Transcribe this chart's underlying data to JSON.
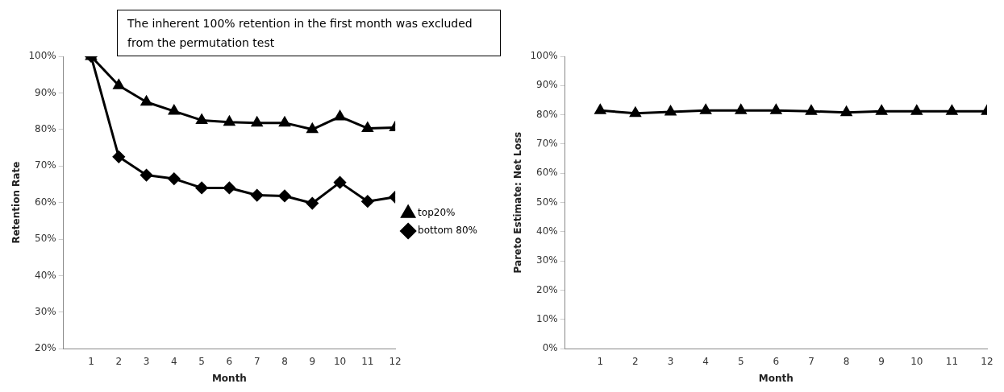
{
  "chart_data": [
    {
      "type": "line",
      "xlabel": "Month",
      "ylabel": "Retention Rate",
      "x": [
        1,
        2,
        3,
        4,
        5,
        6,
        7,
        8,
        9,
        10,
        11,
        12
      ],
      "xlim": [
        0,
        12
      ],
      "xticks": [
        1,
        2,
        3,
        4,
        5,
        6,
        7,
        8,
        9,
        10,
        11,
        12
      ],
      "ylim": [
        20,
        100
      ],
      "yticks": [
        {
          "value": 20,
          "label": "20%"
        },
        {
          "value": 30,
          "label": "30%"
        },
        {
          "value": 40,
          "label": "40%"
        },
        {
          "value": 50,
          "label": "50%"
        },
        {
          "value": 60,
          "label": "60%"
        },
        {
          "value": 70,
          "label": "70%"
        },
        {
          "value": 80,
          "label": "80%"
        },
        {
          "value": 90,
          "label": "90%"
        },
        {
          "value": 100,
          "label": "100%"
        }
      ],
      "series": [
        {
          "name": "top20%",
          "color": "#000000",
          "marker": "triangle",
          "values": [
            100,
            92,
            87.5,
            85,
            82.5,
            82,
            81.8,
            81.8,
            80,
            83.5,
            80.3,
            80.5
          ]
        },
        {
          "name": "bottom 80%",
          "color": "#000000",
          "marker": "diamond",
          "values": [
            100,
            72.5,
            67.5,
            66.5,
            64,
            64,
            62,
            61.8,
            59.8,
            65.5,
            60.3,
            61.5
          ]
        }
      ],
      "legend": "right",
      "grid": false,
      "annotations": [
        "The inherent 100% retention in the first month was excluded from the permutation test"
      ]
    },
    {
      "type": "line",
      "xlabel": "Month",
      "ylabel": "Pareto Estimate: Net Loss",
      "x": [
        1,
        2,
        3,
        4,
        5,
        6,
        7,
        8,
        9,
        10,
        11,
        12
      ],
      "xlim": [
        0,
        12
      ],
      "xticks": [
        1,
        2,
        3,
        4,
        5,
        6,
        7,
        8,
        9,
        10,
        11,
        12
      ],
      "ylim": [
        0,
        100
      ],
      "yticks": [
        {
          "value": 0,
          "label": "0%"
        },
        {
          "value": 10,
          "label": "10%"
        },
        {
          "value": 20,
          "label": "20%"
        },
        {
          "value": 30,
          "label": "30%"
        },
        {
          "value": 40,
          "label": "40%"
        },
        {
          "value": 50,
          "label": "50%"
        },
        {
          "value": 60,
          "label": "60%"
        },
        {
          "value": 70,
          "label": "70%"
        },
        {
          "value": 80,
          "label": "80%"
        },
        {
          "value": 90,
          "label": "90%"
        },
        {
          "value": 100,
          "label": "100%"
        }
      ],
      "series": [
        {
          "color": "#000000",
          "marker": "triangle",
          "values": [
            81.5,
            80.5,
            81,
            81.5,
            81.5,
            81.5,
            81.2,
            80.8,
            81.2,
            81.2,
            81.2,
            81.2
          ]
        }
      ],
      "legend": false,
      "grid": false
    }
  ]
}
